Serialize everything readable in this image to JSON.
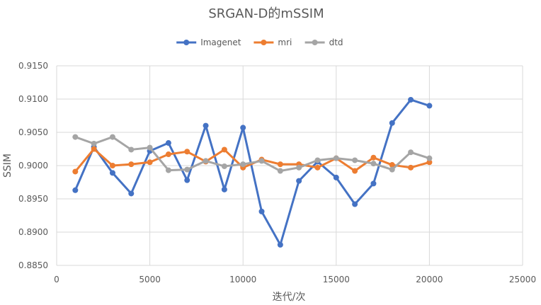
{
  "chart_data": {
    "type": "line",
    "title": "SRGAN-D的mSSIM",
    "xlabel": "迭代/次",
    "ylabel": "SSIM",
    "xlim": [
      0,
      25000
    ],
    "ylim": [
      0.885,
      0.915
    ],
    "x_ticks": [
      0,
      5000,
      10000,
      15000,
      20000,
      25000
    ],
    "y_ticks": [
      0.885,
      0.89,
      0.895,
      0.9,
      0.905,
      0.91,
      0.915
    ],
    "x_tick_labels": [
      "0",
      "5000",
      "10000",
      "15000",
      "20000",
      "25000"
    ],
    "y_tick_labels": [
      "0.8850",
      "0.8900",
      "0.8950",
      "0.9000",
      "0.9050",
      "0.9100",
      "0.9150"
    ],
    "grid": true,
    "legend_position": "top",
    "x": [
      1000,
      2000,
      3000,
      4000,
      5000,
      6000,
      7000,
      8000,
      9000,
      10000,
      11000,
      12000,
      13000,
      14000,
      15000,
      16000,
      17000,
      18000,
      19000,
      20000
    ],
    "series": [
      {
        "name": "Imagenet",
        "color": "#4472c4",
        "values": [
          0.8963,
          0.9028,
          0.8989,
          0.8958,
          0.9022,
          0.9034,
          0.8978,
          0.906,
          0.8964,
          0.9057,
          0.8931,
          0.8881,
          0.8977,
          0.9006,
          0.8982,
          0.8942,
          0.8973,
          0.9064,
          0.9099,
          0.909
        ]
      },
      {
        "name": "mri",
        "color": "#ed7d31",
        "values": [
          0.8991,
          0.9025,
          0.9,
          0.9002,
          0.9005,
          0.9017,
          0.9021,
          0.9006,
          0.9024,
          0.8997,
          0.9009,
          0.9002,
          0.9002,
          0.8997,
          0.9011,
          0.8992,
          0.9012,
          0.9001,
          0.8997,
          0.9005
        ]
      },
      {
        "name": "dtd",
        "color": "#a5a5a5",
        "values": [
          0.9043,
          0.9033,
          0.9043,
          0.9024,
          0.9027,
          0.8993,
          0.8994,
          0.9007,
          0.8999,
          0.9002,
          0.9007,
          0.8992,
          0.8997,
          0.9008,
          0.9011,
          0.9008,
          0.9003,
          0.8994,
          0.902,
          0.9011
        ]
      }
    ]
  }
}
